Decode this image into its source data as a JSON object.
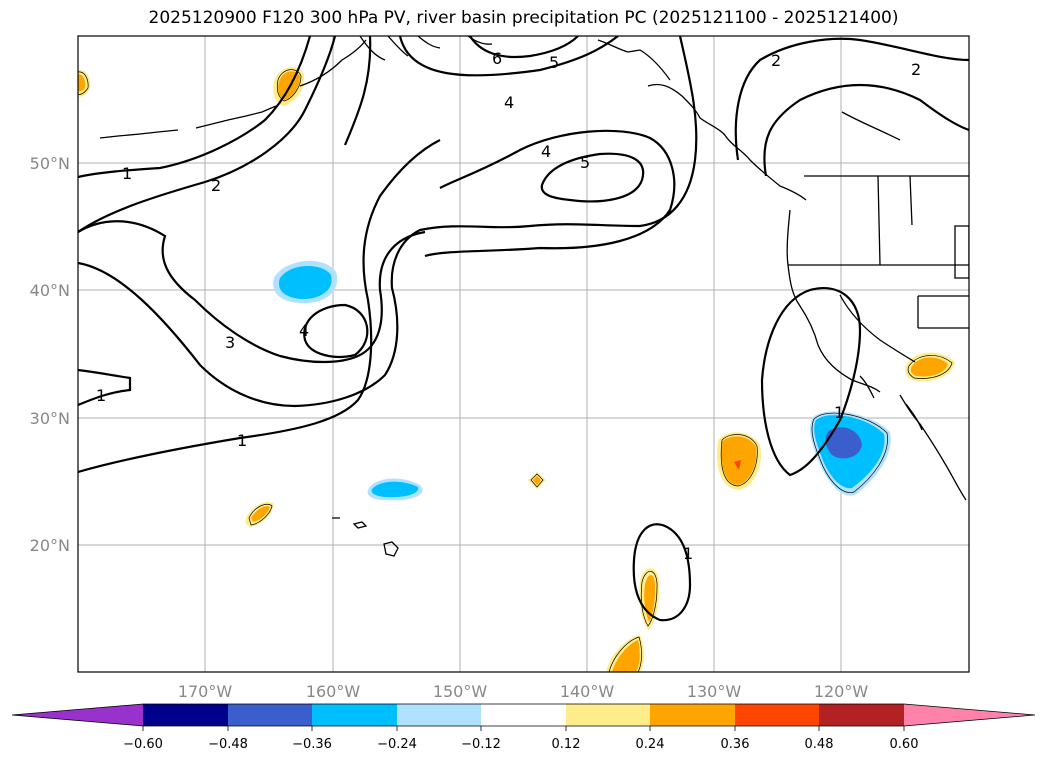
{
  "title": "2025120900 F120 300 hPa PV, river basin precipitation PC (2025121100 - 2025121400)",
  "lat_labels": [
    "50°N",
    "40°N",
    "30°N",
    "20°N"
  ],
  "lon_labels": [
    "170°W",
    "160°W",
    "150°W",
    "140°W",
    "130°W",
    "120°W"
  ],
  "contour_labels": [
    "6",
    "5",
    "4",
    "4",
    "5",
    "2",
    "2",
    "1",
    "2",
    "3",
    "4",
    "1",
    "1",
    "1",
    "1"
  ],
  "colorbar": {
    "colors": [
      "#9932cc",
      "#00008b",
      "#3a5fcd",
      "#00bfff",
      "#b0e2ff",
      "#ffffff",
      "#ffec8b",
      "#ffa500",
      "#ff4500",
      "#b22222",
      "#ff82ab"
    ],
    "ticks": [
      "−0.60",
      "−0.48",
      "−0.36",
      "−0.24",
      "−0.12",
      "0.12",
      "0.24",
      "0.36",
      "0.48",
      "0.60"
    ]
  }
}
